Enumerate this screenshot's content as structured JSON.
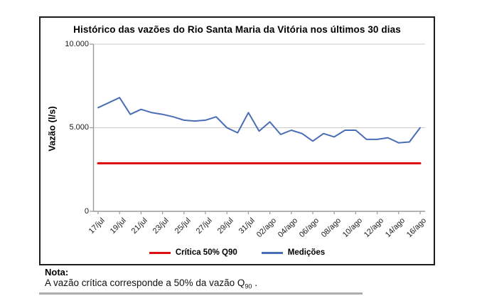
{
  "chart_data": {
    "type": "line",
    "title": "Histórico das vazões do Rio Santa Maria da Vitória nos últimos 30 dias",
    "ylabel": "Vazão (l/s)",
    "xlabel": "",
    "ylim": [
      0,
      10000
    ],
    "y_gridlines": [
      5000,
      10000
    ],
    "y_ticks": [
      {
        "value": 0,
        "label": "0"
      },
      {
        "value": 5000,
        "label": "5.000"
      },
      {
        "value": 10000,
        "label": "10.000"
      }
    ],
    "x_ticks": [
      {
        "i": 0,
        "label": "17/jul"
      },
      {
        "i": 2,
        "label": "19/jul"
      },
      {
        "i": 4,
        "label": "21/jul"
      },
      {
        "i": 6,
        "label": "23/jul"
      },
      {
        "i": 8,
        "label": "25/jul"
      },
      {
        "i": 10,
        "label": "27/jul"
      },
      {
        "i": 12,
        "label": "29/jul"
      },
      {
        "i": 14,
        "label": "31/jul"
      },
      {
        "i": 16,
        "label": "02/ago"
      },
      {
        "i": 18,
        "label": "04/ago"
      },
      {
        "i": 20,
        "label": "06/ago"
      },
      {
        "i": 22,
        "label": "08/ago"
      },
      {
        "i": 24,
        "label": "10/ago"
      },
      {
        "i": 26,
        "label": "12/ago"
      },
      {
        "i": 28,
        "label": "14/ago"
      },
      {
        "i": 30,
        "label": "16/ago"
      }
    ],
    "series": [
      {
        "name": "Crítica 50% Q90",
        "color": "#e01010",
        "stroke_width": 3,
        "constant_value": 2870
      },
      {
        "name": "Medições",
        "color": "#4a6eb5",
        "stroke_width": 2,
        "values": [
          6200,
          6500,
          6800,
          5800,
          6100,
          5900,
          5800,
          5650,
          5450,
          5400,
          5450,
          5650,
          5000,
          4700,
          5900,
          4800,
          5350,
          4600,
          4850,
          4650,
          4200,
          4650,
          4450,
          4850,
          4850,
          4300,
          4300,
          4400,
          4100,
          4150,
          5000
        ]
      }
    ],
    "legend_position": "bottom",
    "grid": "horizontal",
    "colors": {
      "grid": "#cbcbcb",
      "axis": "#9a9a9a",
      "frame_border": "#1c1c1c"
    }
  },
  "note": {
    "heading": "Nota:",
    "body_prefix": "A vazão crítica corresponde a 50% da vazão Q",
    "body_sub": "90",
    "body_suffix": " ."
  }
}
